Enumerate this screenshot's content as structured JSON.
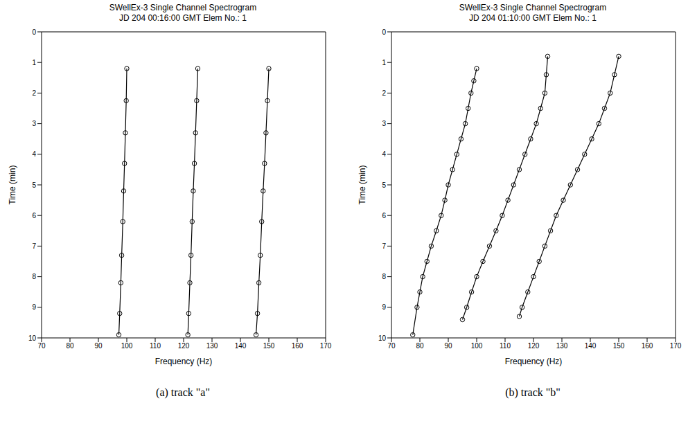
{
  "chart_data": [
    {
      "type": "scatter",
      "title": "SWellEx-3 Single Channel Spectrogram",
      "subtitle": "JD 204 00:16:00 GMT Elem No.: 1",
      "caption": "(a) track \"a\"",
      "x_label": "Frequency (Hz)",
      "y_label": "Time (min)",
      "xlim": [
        70,
        170
      ],
      "xticks": [
        70,
        80,
        90,
        100,
        110,
        120,
        130,
        140,
        150,
        160,
        170
      ],
      "ylim": [
        0,
        10
      ],
      "yticks": [
        0,
        1,
        2,
        3,
        4,
        5,
        6,
        7,
        8,
        9,
        10
      ],
      "grid": false,
      "series": [
        {
          "color": "#000000",
          "marker": "circle",
          "line_style": "solid",
          "x": [
            100,
            99.8,
            99.5,
            99.2,
            98.9,
            98.6,
            98.2,
            97.9,
            97.5,
            97.2
          ],
          "y": [
            1.2,
            2.25,
            3.3,
            4.3,
            5.2,
            6.2,
            7.3,
            8.2,
            9.2,
            9.9
          ]
        },
        {
          "color": "#000000",
          "marker": "circle",
          "line_style": "solid",
          "x": [
            125,
            124.6,
            124.2,
            123.8,
            123.4,
            123,
            122.6,
            122.2,
            121.8,
            121.5
          ],
          "y": [
            1.2,
            2.25,
            3.3,
            4.3,
            5.2,
            6.2,
            7.3,
            8.2,
            9.2,
            9.9
          ]
        },
        {
          "color": "#000000",
          "marker": "circle",
          "line_style": "solid",
          "x": [
            150,
            149.5,
            149,
            148.5,
            148,
            147.5,
            147,
            146.5,
            146,
            145.5
          ],
          "y": [
            1.2,
            2.25,
            3.3,
            4.3,
            5.2,
            6.2,
            7.3,
            8.2,
            9.2,
            9.9
          ]
        }
      ]
    },
    {
      "type": "scatter",
      "title": "SWellEx-3 Single Channel Spectrogram",
      "subtitle": "JD 204 01:10:00 GMT Elem No.: 1",
      "caption": "(b) track \"b\"",
      "x_label": "Frequency (Hz)",
      "y_label": "Time (min)",
      "xlim": [
        70,
        170
      ],
      "xticks": [
        70,
        80,
        90,
        100,
        110,
        120,
        130,
        140,
        150,
        160,
        170
      ],
      "ylim": [
        0,
        10
      ],
      "yticks": [
        0,
        1,
        2,
        3,
        4,
        5,
        6,
        7,
        8,
        9,
        10
      ],
      "grid": false,
      "series": [
        {
          "color": "#000000",
          "marker": "circle",
          "line_style": "solid",
          "x": [
            100,
            99,
            98,
            97,
            96,
            94.5,
            93,
            91.5,
            90,
            88.8,
            87.5,
            85.8,
            84,
            82.5,
            81,
            80,
            79,
            77.5
          ],
          "y": [
            1.2,
            1.6,
            2,
            2.5,
            3,
            3.5,
            4,
            4.5,
            5,
            5.5,
            6,
            6.5,
            7,
            7.5,
            8,
            8.5,
            9,
            9.9
          ]
        },
        {
          "color": "#000000",
          "marker": "circle",
          "line_style": "solid",
          "x": [
            125,
            124.5,
            124,
            122.5,
            121,
            119,
            117,
            115,
            113,
            111,
            109,
            106.8,
            104.5,
            102.2,
            100,
            98.2,
            96.5,
            95
          ],
          "y": [
            0.8,
            1.4,
            2,
            2.5,
            3,
            3.5,
            4,
            4.5,
            5,
            5.5,
            6,
            6.5,
            7,
            7.5,
            8,
            8.5,
            9,
            9.4
          ]
        },
        {
          "color": "#000000",
          "marker": "circle",
          "line_style": "solid",
          "x": [
            150,
            148.5,
            147,
            145,
            143,
            140.5,
            138,
            135.5,
            133,
            130.5,
            128,
            126,
            124,
            122,
            120,
            118,
            116,
            115
          ],
          "y": [
            0.8,
            1.4,
            2,
            2.5,
            3,
            3.5,
            4,
            4.5,
            5,
            5.5,
            6,
            6.5,
            7,
            7.5,
            8,
            8.5,
            9,
            9.3
          ]
        }
      ]
    }
  ]
}
